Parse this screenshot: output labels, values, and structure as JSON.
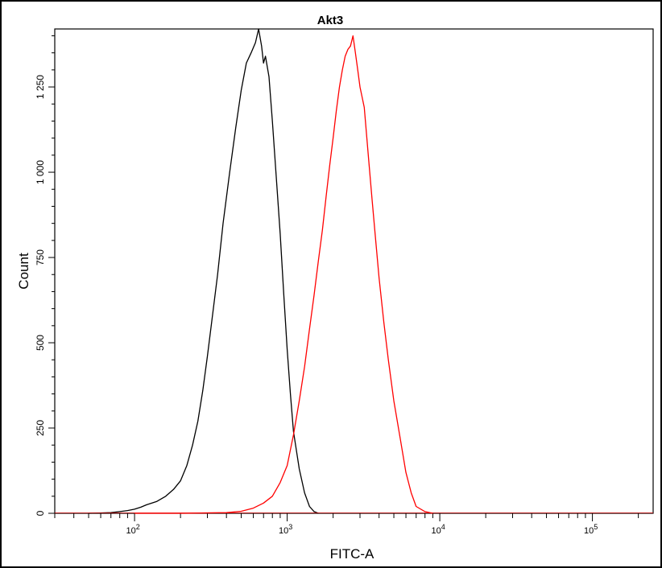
{
  "chart_data": {
    "type": "line",
    "title": "Akt3",
    "xlabel": "FITC-A",
    "ylabel": "Count",
    "x_scale": "log",
    "xlim": [
      30,
      250000
    ],
    "ylim": [
      0,
      1420
    ],
    "y_ticks": [
      {
        "value": 0,
        "label": "0"
      },
      {
        "value": 250,
        "label": "250"
      },
      {
        "value": 500,
        "label": "500"
      },
      {
        "value": 750,
        "label": "750"
      },
      {
        "value": 1000,
        "label": "1 000"
      },
      {
        "value": 1250,
        "label": "1 250"
      }
    ],
    "x_ticks": [
      {
        "value": 100,
        "base": "10",
        "exp": "2"
      },
      {
        "value": 1000,
        "base": "10",
        "exp": "3"
      },
      {
        "value": 10000,
        "base": "10",
        "exp": "4"
      },
      {
        "value": 100000,
        "base": "10",
        "exp": "5"
      }
    ],
    "grid": false,
    "legend": "none",
    "series": [
      {
        "color": "#000000",
        "points": [
          [
            50,
            0
          ],
          [
            70,
            2
          ],
          [
            80,
            5
          ],
          [
            90,
            8
          ],
          [
            100,
            12
          ],
          [
            110,
            18
          ],
          [
            120,
            25
          ],
          [
            140,
            35
          ],
          [
            160,
            50
          ],
          [
            180,
            70
          ],
          [
            200,
            95
          ],
          [
            220,
            140
          ],
          [
            240,
            200
          ],
          [
            260,
            270
          ],
          [
            280,
            360
          ],
          [
            300,
            460
          ],
          [
            320,
            560
          ],
          [
            350,
            700
          ],
          [
            380,
            850
          ],
          [
            420,
            1000
          ],
          [
            460,
            1130
          ],
          [
            500,
            1240
          ],
          [
            540,
            1320
          ],
          [
            580,
            1350
          ],
          [
            620,
            1380
          ],
          [
            650,
            1420
          ],
          [
            680,
            1370
          ],
          [
            700,
            1320
          ],
          [
            720,
            1340
          ],
          [
            760,
            1280
          ],
          [
            800,
            1150
          ],
          [
            850,
            980
          ],
          [
            900,
            820
          ],
          [
            950,
            640
          ],
          [
            1000,
            480
          ],
          [
            1050,
            350
          ],
          [
            1100,
            240
          ],
          [
            1200,
            130
          ],
          [
            1300,
            60
          ],
          [
            1400,
            20
          ],
          [
            1500,
            5
          ],
          [
            1600,
            0
          ]
        ]
      },
      {
        "color": "#ff0000",
        "points": [
          [
            100,
            0
          ],
          [
            200,
            0
          ],
          [
            400,
            2
          ],
          [
            500,
            6
          ],
          [
            600,
            15
          ],
          [
            700,
            30
          ],
          [
            800,
            50
          ],
          [
            900,
            90
          ],
          [
            1000,
            140
          ],
          [
            1100,
            230
          ],
          [
            1200,
            330
          ],
          [
            1300,
            430
          ],
          [
            1400,
            540
          ],
          [
            1500,
            640
          ],
          [
            1600,
            740
          ],
          [
            1700,
            830
          ],
          [
            1800,
            930
          ],
          [
            1900,
            1020
          ],
          [
            2000,
            1100
          ],
          [
            2100,
            1180
          ],
          [
            2200,
            1250
          ],
          [
            2300,
            1300
          ],
          [
            2400,
            1340
          ],
          [
            2500,
            1360
          ],
          [
            2600,
            1370
          ],
          [
            2700,
            1400
          ],
          [
            2800,
            1350
          ],
          [
            2900,
            1300
          ],
          [
            3000,
            1250
          ],
          [
            3200,
            1190
          ],
          [
            3400,
            1050
          ],
          [
            3600,
            920
          ],
          [
            3800,
            800
          ],
          [
            4000,
            690
          ],
          [
            4300,
            560
          ],
          [
            4600,
            450
          ],
          [
            5000,
            330
          ],
          [
            5500,
            220
          ],
          [
            6000,
            120
          ],
          [
            6500,
            60
          ],
          [
            7000,
            20
          ],
          [
            8000,
            5
          ],
          [
            9000,
            0
          ]
        ]
      }
    ]
  }
}
